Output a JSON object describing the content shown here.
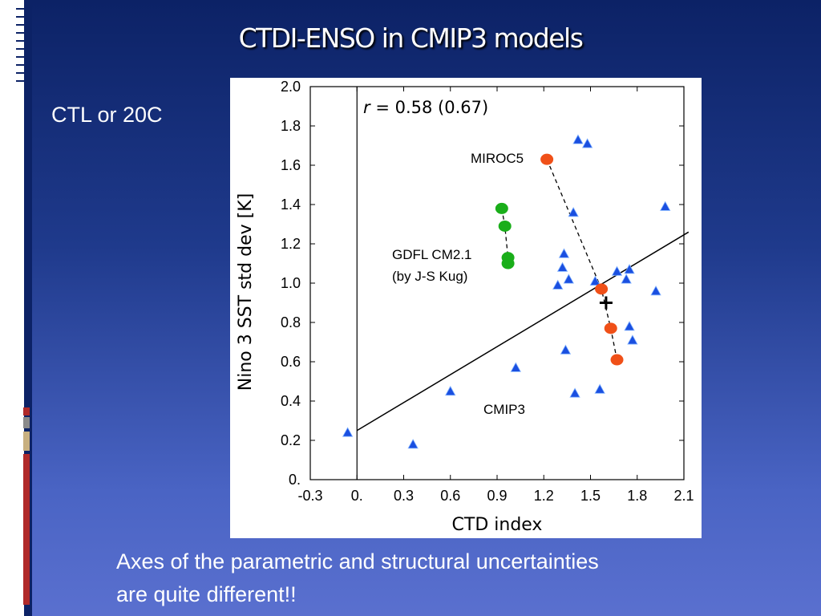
{
  "slide": {
    "title": "CTDI-ENSO in CMIP3 models",
    "subtitle": "CTL or 20C",
    "bottom_text_line1": "Axes of the parametric and structural uncertainties",
    "bottom_text_line2": "are quite different!!"
  },
  "colors": {
    "cmip3": "#1a4fe0",
    "miroc5": "#f05018",
    "gfdl": "#1aae1a",
    "background_top": "#0c2266",
    "background_bottom": "#5a70cf"
  },
  "chart_data": {
    "type": "scatter",
    "xlabel": "CTD index",
    "ylabel": "Nino 3 SST std dev [K]",
    "xlim": [
      -0.3,
      2.1
    ],
    "ylim": [
      0,
      2.0
    ],
    "x_ticks": [
      "-0.3",
      "0.",
      "0.3",
      "0.6",
      "0.9",
      "1.2",
      "1.5",
      "1.8",
      "2.1"
    ],
    "y_ticks": [
      "0.",
      "0.2",
      "0.4",
      "0.6",
      "0.8",
      "1.0",
      "1.2",
      "1.4",
      "1.6",
      "1.8",
      "2.0"
    ],
    "annotation_r_italic": "r",
    "annotation_r_rest": " = 0.58 (0.67)",
    "labels": {
      "miroc5": "MIROC5",
      "gfdl_line1": "GDFL CM2.1",
      "gfdl_line2": "(by J-S Kug)",
      "cmip3": "CMIP3"
    },
    "regression_line": {
      "x": [
        0.0,
        2.13
      ],
      "y": [
        0.25,
        1.26
      ]
    },
    "reference_point": {
      "x": 1.6,
      "y": 0.9
    },
    "series": [
      {
        "name": "CMIP3",
        "marker": "triangle",
        "x": [
          -0.06,
          0.36,
          0.6,
          1.02,
          1.42,
          1.48,
          1.98,
          1.39,
          1.33,
          1.32,
          1.29,
          1.36,
          1.53,
          1.67,
          1.75,
          1.73,
          1.92,
          1.75,
          1.77,
          1.34,
          1.4,
          1.56
        ],
        "y": [
          0.24,
          0.18,
          0.45,
          0.57,
          1.73,
          1.71,
          1.39,
          1.36,
          1.15,
          1.08,
          0.99,
          1.02,
          1.01,
          1.06,
          1.07,
          1.02,
          0.96,
          0.78,
          0.71,
          0.66,
          0.44,
          0.46
        ]
      },
      {
        "name": "MIROC5",
        "marker": "circle",
        "x": [
          1.22,
          1.57,
          1.63,
          1.67
        ],
        "y": [
          1.63,
          0.97,
          0.77,
          0.61
        ]
      },
      {
        "name": "GDFL CM2.1",
        "marker": "circle",
        "x": [
          0.93,
          0.95,
          0.97,
          0.97
        ],
        "y": [
          1.38,
          1.29,
          1.13,
          1.1
        ]
      }
    ]
  }
}
